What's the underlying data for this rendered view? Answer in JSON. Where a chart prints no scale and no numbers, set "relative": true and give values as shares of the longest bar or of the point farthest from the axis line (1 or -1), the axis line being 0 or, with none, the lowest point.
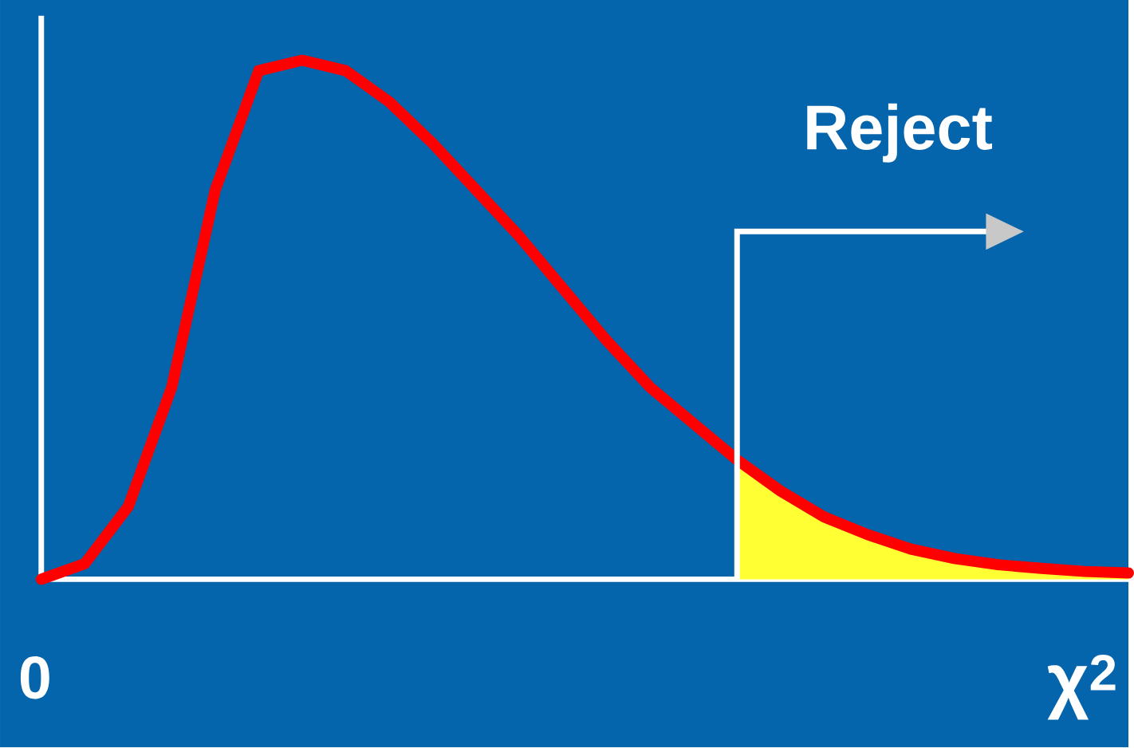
{
  "chart_data": {
    "type": "line",
    "relative": true,
    "xlabel": "χ$^{2}$",
    "annotations": [
      "0",
      "Reject"
    ],
    "grid": false,
    "legend": false,
    "marker": "none",
    "line_style": "solid",
    "categories": [
      null,
      null,
      null,
      null,
      null,
      null,
      null,
      null,
      null,
      null,
      null,
      null,
      null,
      null,
      null,
      null,
      null,
      null,
      null,
      null,
      null,
      null,
      null,
      null,
      null,
      null
    ],
    "series": [
      {
        "type": "area",
        "color": "#ffff33",
        "values": [
          null,
          null,
          null,
          null,
          null,
          null,
          null,
          null,
          null,
          null,
          null,
          null,
          null,
          null,
          null,
          null,
          0.23,
          0.17,
          0.12,
          0.086,
          0.058,
          0.04,
          0.028,
          0.021,
          0.015,
          0.012
        ]
      },
      {
        "color": "#ff0000",
        "values": [
          0,
          0.03,
          0.14,
          0.37,
          0.75,
          0.98,
          1.0,
          0.98,
          0.92,
          0.84,
          0.75,
          0.66,
          0.56,
          0.46,
          0.37,
          0.3,
          0.23,
          0.17,
          0.12,
          0.086,
          0.058,
          0.04,
          0.028,
          0.021,
          0.015,
          0.012
        ]
      }
    ]
  }
}
